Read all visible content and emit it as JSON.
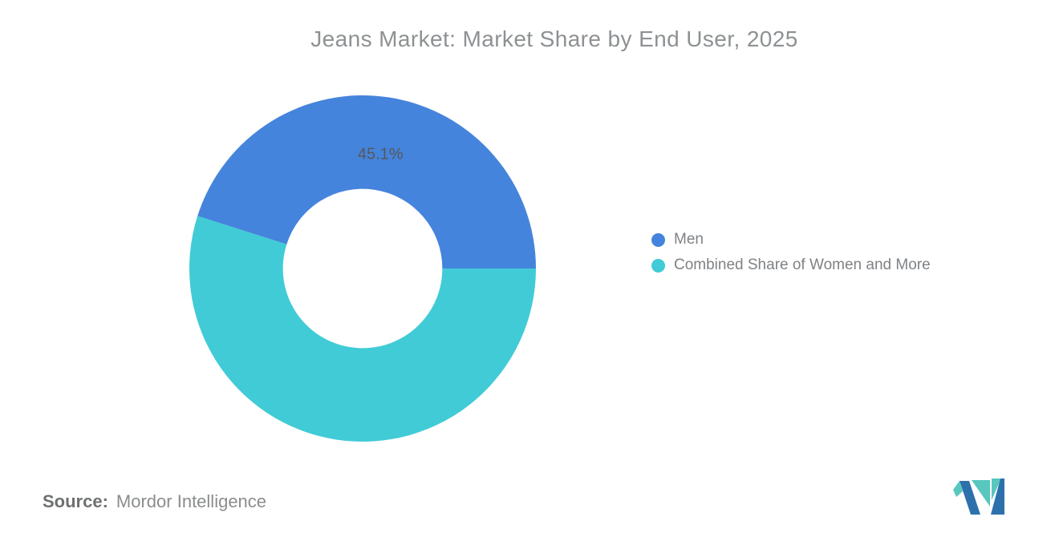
{
  "chart_data": {
    "type": "pie",
    "subtype": "donut",
    "title": "Jeans Market: Market Share by End User, 2025",
    "unit": "%",
    "legend_position": "right",
    "start_angle_deg": 0,
    "direction": "counterclockwise",
    "inner_radius_ratio": 0.46,
    "series": [
      {
        "name": "Men",
        "value": 45.1,
        "label": "45.1%",
        "color": "#4584DC",
        "label_shown": true
      },
      {
        "name": "Combined Share of Women and More",
        "value": 54.9,
        "label": "54.9%",
        "color": "#41CBD6",
        "label_shown": false
      }
    ]
  },
  "source": {
    "prefix": "Source:",
    "text": "Mordor Intelligence"
  },
  "logo": {
    "name": "mordor-intelligence-logo",
    "blue": "#2C71AC",
    "teal": "#57C7BF"
  }
}
